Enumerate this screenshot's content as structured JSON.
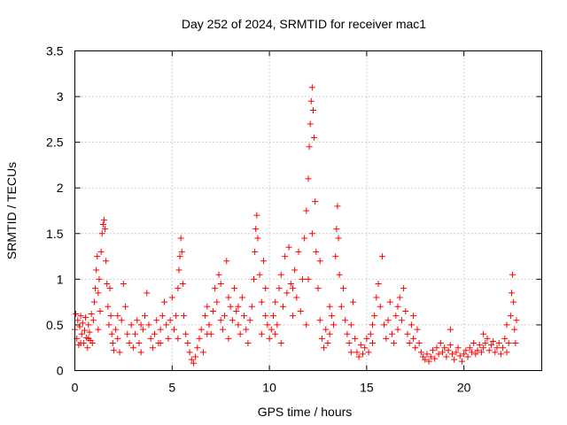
{
  "chart_data": {
    "type": "scatter",
    "title": "Day 252 of 2024, SRMTID for receiver mac1",
    "xlabel": "GPS time / hours",
    "ylabel": "SRMTID / TECUs",
    "xlim": [
      0,
      24
    ],
    "ylim": [
      0,
      3.5
    ],
    "xticks": [
      0,
      5,
      10,
      15,
      20
    ],
    "xtick_labels": [
      "0",
      "5",
      "10",
      "15",
      "20"
    ],
    "yticks": [
      0,
      0.5,
      1,
      1.5,
      2,
      2.5,
      3,
      3.5
    ],
    "ytick_labels": [
      "0",
      "0.5",
      "1",
      "1.5",
      "2",
      "2.5",
      "3",
      "3.5"
    ],
    "grid": true,
    "marker": "+",
    "series": [
      {
        "name": "mac1",
        "color": "#ff0000",
        "points": [
          [
            0.0,
            0.45
          ],
          [
            0.05,
            0.62
          ],
          [
            0.1,
            0.35
          ],
          [
            0.15,
            0.55
          ],
          [
            0.2,
            0.28
          ],
          [
            0.25,
            0.48
          ],
          [
            0.3,
            0.6
          ],
          [
            0.35,
            0.4
          ],
          [
            0.4,
            0.52
          ],
          [
            0.45,
            0.3
          ],
          [
            0.5,
            0.44
          ],
          [
            0.55,
            0.58
          ],
          [
            0.6,
            0.36
          ],
          [
            0.65,
            0.25
          ],
          [
            0.7,
            0.5
          ],
          [
            0.75,
            0.42
          ],
          [
            0.8,
            0.33
          ],
          [
            0.85,
            0.62
          ],
          [
            0.9,
            0.3
          ],
          [
            0.95,
            0.55
          ],
          [
            1.0,
            0.75
          ],
          [
            1.05,
            0.9
          ],
          [
            1.1,
            1.1
          ],
          [
            1.15,
            1.25
          ],
          [
            1.2,
            0.85
          ],
          [
            1.25,
            1.0
          ],
          [
            1.3,
            0.65
          ],
          [
            1.35,
            1.3
          ],
          [
            1.4,
            1.5
          ],
          [
            1.45,
            1.6
          ],
          [
            1.5,
            1.65
          ],
          [
            1.55,
            1.55
          ],
          [
            1.6,
            1.2
          ],
          [
            1.65,
            0.95
          ],
          [
            1.7,
            0.7
          ],
          [
            1.75,
            0.5
          ],
          [
            1.8,
            0.9
          ],
          [
            1.85,
            0.6
          ],
          [
            1.9,
            0.4
          ],
          [
            1.95,
            0.3
          ],
          [
            2.0,
            0.22
          ],
          [
            2.1,
            0.45
          ],
          [
            2.2,
            0.35
          ],
          [
            2.3,
            0.2
          ],
          [
            2.4,
            0.55
          ],
          [
            2.5,
            0.95
          ],
          [
            2.6,
            0.7
          ],
          [
            2.7,
            0.4
          ],
          [
            2.8,
            0.3
          ],
          [
            2.9,
            0.5
          ],
          [
            3.0,
            0.25
          ],
          [
            3.1,
            0.4
          ],
          [
            3.2,
            0.55
          ],
          [
            3.3,
            0.3
          ],
          [
            3.4,
            0.2
          ],
          [
            3.5,
            0.45
          ],
          [
            3.6,
            0.6
          ],
          [
            3.7,
            0.85
          ],
          [
            3.8,
            0.5
          ],
          [
            3.9,
            0.35
          ],
          [
            4.0,
            0.25
          ],
          [
            4.1,
            0.4
          ],
          [
            4.2,
            0.55
          ],
          [
            4.3,
            0.3
          ],
          [
            4.4,
            0.45
          ],
          [
            4.5,
            0.6
          ],
          [
            4.6,
            0.75
          ],
          [
            4.7,
            0.5
          ],
          [
            4.8,
            0.35
          ],
          [
            4.9,
            0.55
          ],
          [
            5.0,
            0.8
          ],
          [
            5.1,
            0.45
          ],
          [
            5.2,
            0.6
          ],
          [
            5.3,
            0.9
          ],
          [
            5.35,
            1.1
          ],
          [
            5.4,
            1.25
          ],
          [
            5.45,
            1.45
          ],
          [
            5.5,
            1.3
          ],
          [
            5.55,
            0.95
          ],
          [
            5.6,
            0.6
          ],
          [
            5.7,
            0.4
          ],
          [
            5.8,
            0.3
          ],
          [
            5.9,
            0.2
          ],
          [
            6.0,
            0.12
          ],
          [
            6.1,
            0.08
          ],
          [
            6.2,
            0.15
          ],
          [
            6.3,
            0.25
          ],
          [
            6.4,
            0.35
          ],
          [
            6.5,
            0.45
          ],
          [
            6.6,
            0.2
          ],
          [
            6.7,
            0.6
          ],
          [
            6.8,
            0.7
          ],
          [
            6.9,
            0.5
          ],
          [
            7.0,
            0.4
          ],
          [
            7.1,
            0.65
          ],
          [
            7.2,
            0.9
          ],
          [
            7.3,
            0.75
          ],
          [
            7.4,
            1.05
          ],
          [
            7.5,
            0.55
          ],
          [
            7.6,
            0.45
          ],
          [
            7.7,
            0.6
          ],
          [
            7.8,
            1.2
          ],
          [
            7.9,
            0.8
          ],
          [
            8.0,
            0.7
          ],
          [
            8.1,
            0.55
          ],
          [
            8.2,
            0.9
          ],
          [
            8.3,
            0.65
          ],
          [
            8.4,
            0.5
          ],
          [
            8.5,
            0.4
          ],
          [
            8.6,
            0.8
          ],
          [
            8.7,
            0.6
          ],
          [
            8.8,
            0.45
          ],
          [
            8.9,
            0.3
          ],
          [
            9.0,
            0.55
          ],
          [
            9.1,
            0.7
          ],
          [
            9.2,
            1.0
          ],
          [
            9.25,
            1.3
          ],
          [
            9.3,
            1.55
          ],
          [
            9.35,
            1.7
          ],
          [
            9.4,
            1.45
          ],
          [
            9.5,
            1.05
          ],
          [
            9.6,
            0.75
          ],
          [
            9.7,
            1.2
          ],
          [
            9.8,
            0.9
          ],
          [
            9.9,
            0.5
          ],
          [
            10.0,
            0.35
          ],
          [
            10.1,
            0.45
          ],
          [
            10.2,
            0.6
          ],
          [
            10.3,
            0.75
          ],
          [
            10.4,
            0.5
          ],
          [
            10.5,
            0.9
          ],
          [
            10.6,
            1.05
          ],
          [
            10.7,
            0.7
          ],
          [
            10.8,
            1.25
          ],
          [
            10.9,
            0.85
          ],
          [
            11.0,
            1.35
          ],
          [
            11.1,
            0.95
          ],
          [
            11.2,
            0.6
          ],
          [
            11.3,
            1.1
          ],
          [
            11.4,
            0.8
          ],
          [
            11.5,
            1.3
          ],
          [
            11.6,
            0.65
          ],
          [
            11.7,
            1.0
          ],
          [
            11.8,
            1.45
          ],
          [
            11.9,
            1.75
          ],
          [
            12.0,
            2.1
          ],
          [
            12.05,
            2.45
          ],
          [
            12.1,
            2.7
          ],
          [
            12.15,
            2.95
          ],
          [
            12.2,
            3.1
          ],
          [
            12.25,
            2.85
          ],
          [
            12.3,
            2.55
          ],
          [
            12.35,
            1.85
          ],
          [
            12.4,
            1.3
          ],
          [
            12.5,
            0.9
          ],
          [
            12.6,
            0.55
          ],
          [
            12.7,
            0.35
          ],
          [
            12.8,
            0.25
          ],
          [
            12.9,
            0.45
          ],
          [
            13.0,
            0.3
          ],
          [
            13.1,
            0.4
          ],
          [
            13.2,
            0.6
          ],
          [
            13.3,
            0.5
          ],
          [
            13.4,
            1.25
          ],
          [
            13.45,
            1.55
          ],
          [
            13.5,
            1.8
          ],
          [
            13.55,
            1.45
          ],
          [
            13.6,
            1.05
          ],
          [
            13.7,
            0.7
          ],
          [
            13.8,
            0.9
          ],
          [
            13.9,
            0.55
          ],
          [
            14.0,
            0.4
          ],
          [
            14.1,
            0.3
          ],
          [
            14.2,
            0.5
          ],
          [
            14.3,
            0.75
          ],
          [
            14.4,
            0.35
          ],
          [
            14.5,
            0.2
          ],
          [
            14.6,
            0.15
          ],
          [
            14.7,
            0.28
          ],
          [
            14.8,
            0.18
          ],
          [
            14.9,
            0.25
          ],
          [
            15.0,
            0.35
          ],
          [
            15.1,
            0.2
          ],
          [
            15.2,
            0.4
          ],
          [
            15.3,
            0.3
          ],
          [
            15.4,
            0.6
          ],
          [
            15.5,
            0.8
          ],
          [
            15.6,
            0.95
          ],
          [
            15.7,
            0.7
          ],
          [
            15.8,
            1.25
          ],
          [
            15.9,
            0.5
          ],
          [
            16.0,
            0.35
          ],
          [
            16.1,
            0.55
          ],
          [
            16.2,
            0.75
          ],
          [
            16.3,
            0.4
          ],
          [
            16.4,
            0.3
          ],
          [
            16.5,
            0.6
          ],
          [
            16.6,
            0.45
          ],
          [
            16.7,
            0.8
          ],
          [
            16.8,
            0.55
          ],
          [
            16.9,
            0.9
          ],
          [
            17.0,
            0.65
          ],
          [
            17.1,
            0.4
          ],
          [
            17.2,
            0.3
          ],
          [
            17.3,
            0.5
          ],
          [
            17.4,
            0.35
          ],
          [
            17.5,
            0.25
          ],
          [
            17.6,
            0.45
          ],
          [
            17.7,
            0.3
          ],
          [
            17.8,
            0.2
          ],
          [
            17.9,
            0.15
          ],
          [
            18.0,
            0.12
          ],
          [
            18.1,
            0.18
          ],
          [
            18.2,
            0.1
          ],
          [
            18.3,
            0.15
          ],
          [
            18.4,
            0.22
          ],
          [
            18.5,
            0.13
          ],
          [
            18.6,
            0.25
          ],
          [
            18.7,
            0.18
          ],
          [
            18.8,
            0.3
          ],
          [
            18.9,
            0.2
          ],
          [
            19.0,
            0.25
          ],
          [
            19.1,
            0.15
          ],
          [
            19.2,
            0.22
          ],
          [
            19.3,
            0.28
          ],
          [
            19.4,
            0.18
          ],
          [
            19.5,
            0.12
          ],
          [
            19.6,
            0.2
          ],
          [
            19.7,
            0.25
          ],
          [
            19.8,
            0.16
          ],
          [
            19.9,
            0.1
          ],
          [
            20.0,
            0.18
          ],
          [
            20.1,
            0.22
          ],
          [
            20.2,
            0.15
          ],
          [
            20.3,
            0.25
          ],
          [
            20.4,
            0.2
          ],
          [
            20.5,
            0.3
          ],
          [
            20.6,
            0.18
          ],
          [
            20.7,
            0.22
          ],
          [
            20.8,
            0.28
          ],
          [
            20.9,
            0.2
          ],
          [
            21.0,
            0.25
          ],
          [
            21.1,
            0.3
          ],
          [
            21.2,
            0.35
          ],
          [
            21.3,
            0.22
          ],
          [
            21.4,
            0.28
          ],
          [
            21.5,
            0.32
          ],
          [
            21.6,
            0.2
          ],
          [
            21.7,
            0.25
          ],
          [
            21.8,
            0.3
          ],
          [
            21.9,
            0.18
          ],
          [
            22.0,
            0.25
          ],
          [
            22.1,
            0.35
          ],
          [
            22.2,
            0.5
          ],
          [
            22.3,
            0.3
          ],
          [
            22.4,
            0.6
          ],
          [
            22.45,
            0.85
          ],
          [
            22.5,
            1.05
          ],
          [
            22.55,
            0.75
          ],
          [
            22.6,
            0.45
          ],
          [
            22.65,
            0.3
          ],
          [
            22.7,
            0.55
          ],
          [
            0.3,
            0.3
          ],
          [
            0.7,
            0.35
          ],
          [
            2.2,
            0.6
          ],
          [
            3.4,
            0.5
          ],
          [
            4.4,
            0.3
          ],
          [
            6.8,
            0.4
          ],
          [
            7.5,
            0.95
          ],
          [
            8.4,
            0.7
          ],
          [
            9.8,
            0.6
          ],
          [
            10.3,
            0.4
          ],
          [
            11.2,
            0.9
          ],
          [
            11.9,
            0.5
          ],
          [
            12.6,
            1.2
          ],
          [
            13.1,
            0.7
          ],
          [
            14.2,
            0.2
          ],
          [
            15.3,
            0.5
          ],
          [
            16.6,
            0.7
          ],
          [
            17.4,
            0.6
          ],
          [
            19.3,
            0.45
          ],
          [
            21.0,
            0.4
          ],
          [
            22.2,
            0.2
          ],
          [
            10.6,
            0.3
          ],
          [
            12.0,
            1.0
          ],
          [
            12.2,
            1.5
          ],
          [
            9.6,
            0.4
          ],
          [
            7.9,
            0.35
          ],
          [
            5.3,
            0.35
          ],
          [
            1.2,
            0.45
          ]
        ]
      }
    ]
  }
}
